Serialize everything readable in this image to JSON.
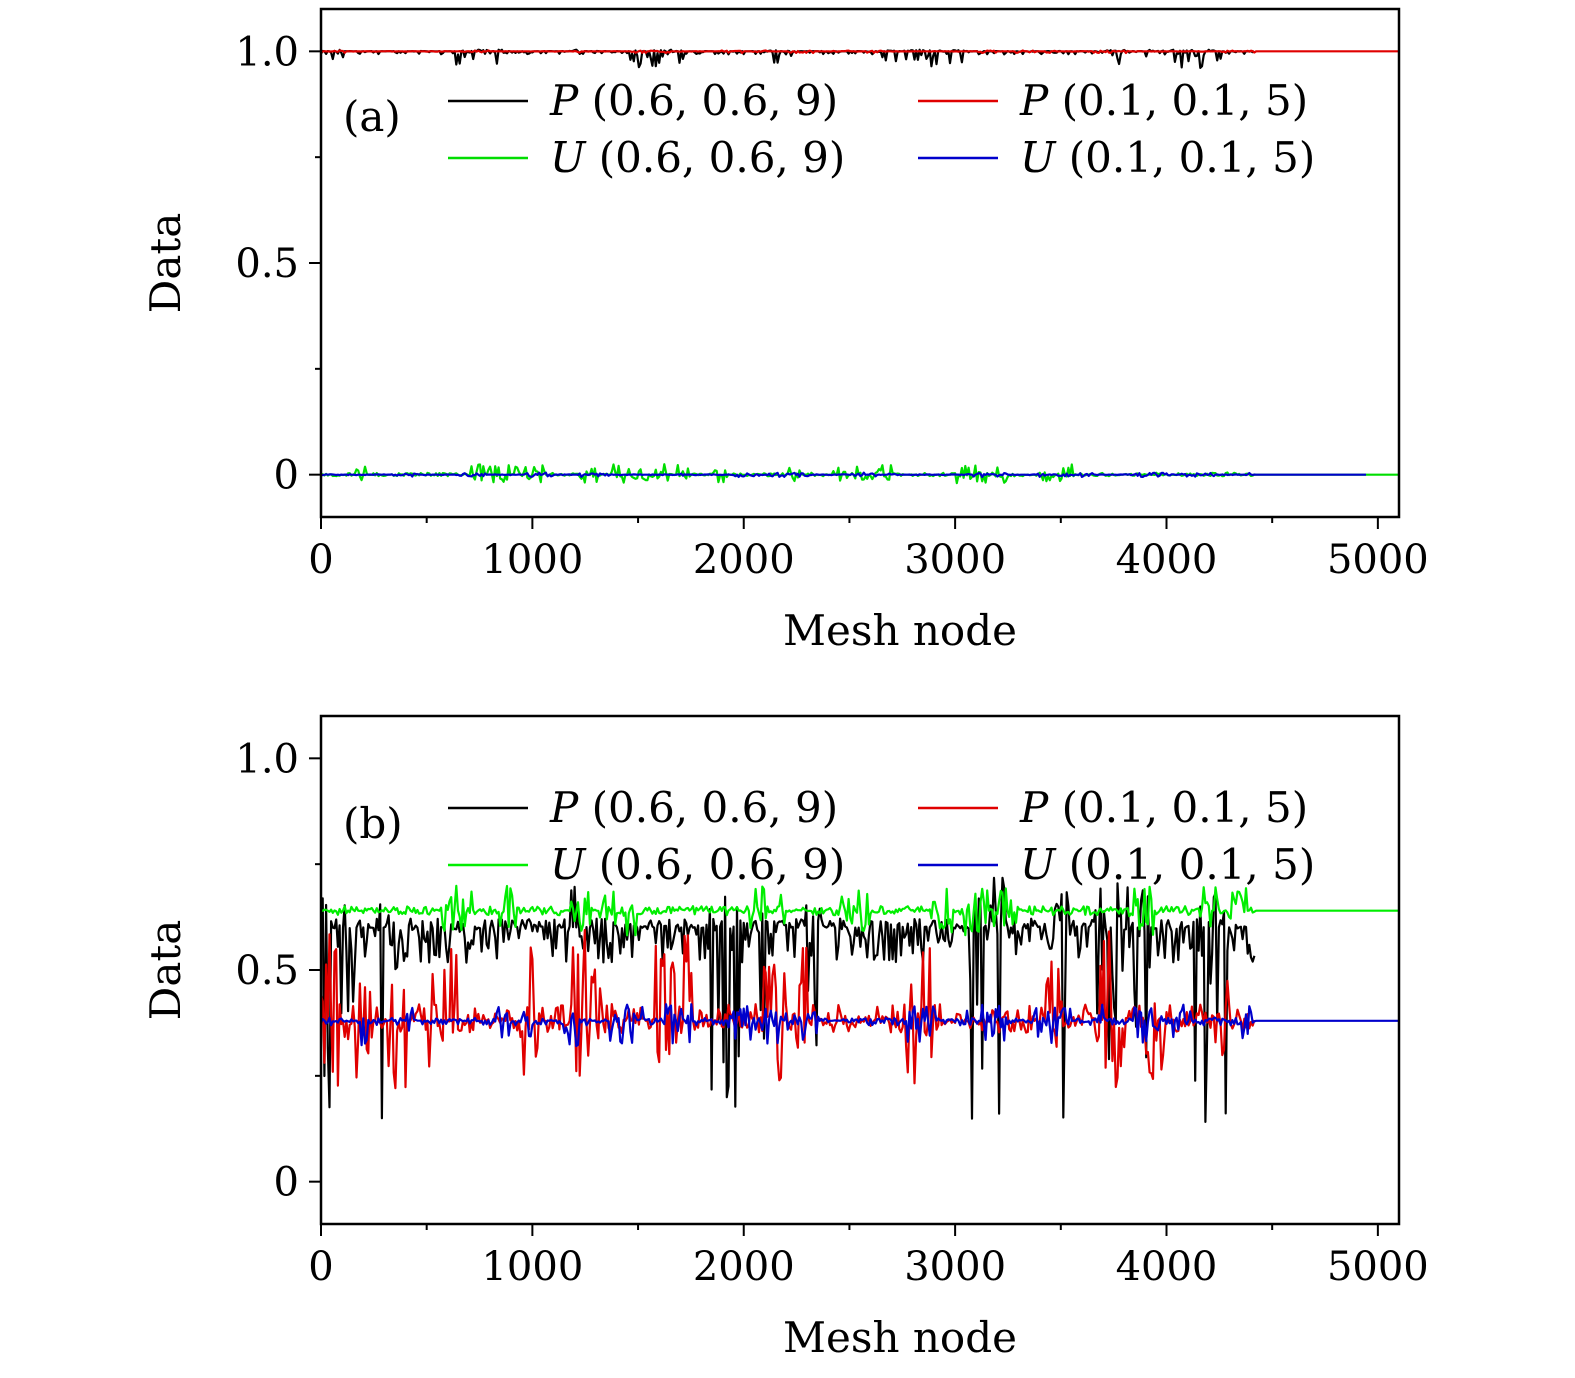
{
  "chart_data": [
    {
      "type": "line",
      "panel_label": "(a)",
      "xlabel": "Mesh node",
      "ylabel": "Data",
      "xlim": [
        0,
        5100
      ],
      "ylim": [
        -0.1,
        1.1
      ],
      "xticks": [
        0,
        1000,
        2000,
        3000,
        4000,
        5000
      ],
      "yticks": [
        0,
        0.5,
        1.0
      ],
      "ytick_labels": [
        "0",
        "0.5",
        "1.0"
      ],
      "legend_position": "upper center, two columns",
      "series": [
        {
          "name": "P (0.6, 0.6, 9)",
          "var": "P",
          "params": " (0.6, 0.6, 9)",
          "color": "#000000",
          "x_range": [
            0,
            4420
          ],
          "baseline": 1.0,
          "noise_down": 0.04,
          "noise_up": 0.004
        },
        {
          "name": "P (0.1, 0.1, 5)",
          "var": "P",
          "params": " (0.1, 0.1, 5)",
          "color": "#e00000",
          "x_range": [
            0,
            5100
          ],
          "baseline": 1.0,
          "noise_down": 0.004,
          "noise_up": 0.002
        },
        {
          "name": "U (0.6, 0.6, 9)",
          "var": "U",
          "params": " (0.6, 0.6, 9)",
          "color": "#00dd00",
          "x_range": [
            0,
            5100
          ],
          "baseline": 0.0,
          "noise_down": 0.02,
          "noise_up": 0.025
        },
        {
          "name": "U (0.1, 0.1, 5)",
          "var": "U",
          "params": " (0.1, 0.1, 5)",
          "color": "#0000cc",
          "x_range": [
            0,
            4950
          ],
          "baseline": 0.0,
          "noise_down": 0.006,
          "noise_up": 0.005
        }
      ]
    },
    {
      "type": "line",
      "panel_label": "(b)",
      "xlabel": "Mesh node",
      "ylabel": "Data",
      "xlim": [
        0,
        5100
      ],
      "ylim": [
        -0.1,
        1.1
      ],
      "xticks": [
        0,
        1000,
        2000,
        3000,
        4000,
        5000
      ],
      "yticks": [
        0,
        0.5,
        1.0
      ],
      "ytick_labels": [
        "0",
        "0.5",
        "1.0"
      ],
      "legend_position": "upper center, two columns",
      "series": [
        {
          "name": "P (0.6, 0.6, 9)",
          "var": "P",
          "params": " (0.6, 0.6, 9)",
          "color": "#000000",
          "x_range": [
            0,
            4420
          ],
          "baseline": 0.6,
          "noise_down": 0.46,
          "noise_up": 0.12
        },
        {
          "name": "P (0.1, 0.1, 5)",
          "var": "P",
          "params": " (0.1, 0.1, 5)",
          "color": "#e00000",
          "x_range": [
            0,
            4420
          ],
          "baseline": 0.38,
          "noise_down": 0.16,
          "noise_up": 0.22
        },
        {
          "name": "U (0.6, 0.6, 9)",
          "var": "U",
          "params": " (0.6, 0.6, 9)",
          "color": "#00ee00",
          "x_range": [
            0,
            5100
          ],
          "baseline": 0.64,
          "noise_down": 0.06,
          "noise_up": 0.06
        },
        {
          "name": "U (0.1, 0.1, 5)",
          "var": "U",
          "params": " (0.1, 0.1, 5)",
          "color": "#0000cc",
          "x_range": [
            0,
            5100
          ],
          "baseline": 0.38,
          "noise_down": 0.06,
          "noise_up": 0.04
        }
      ]
    }
  ]
}
